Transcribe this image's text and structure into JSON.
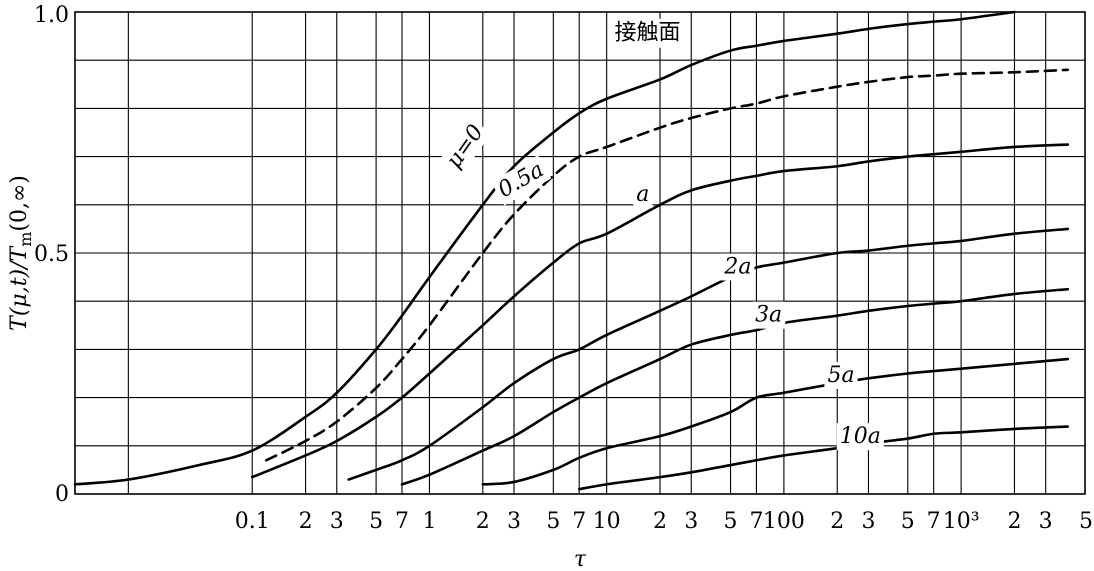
{
  "chart_data": {
    "type": "line",
    "xscale": "log",
    "xlim": [
      0.01,
      5000
    ],
    "ylim": [
      0,
      1.0
    ],
    "xlabel": "τ",
    "ylabel": "T(μ,t)/T_m(0,∞)",
    "y_ticks": [
      {
        "value": 0,
        "label": "0"
      },
      {
        "value": 0.5,
        "label": "0.5"
      },
      {
        "value": 1.0,
        "label": "1.0"
      }
    ],
    "x_ticks": [
      {
        "value": 0.1,
        "label": "0.1"
      },
      {
        "value": 0.2,
        "label": "2"
      },
      {
        "value": 0.3,
        "label": "3"
      },
      {
        "value": 0.5,
        "label": "5"
      },
      {
        "value": 0.7,
        "label": "7"
      },
      {
        "value": 1,
        "label": "1"
      },
      {
        "value": 2,
        "label": "2"
      },
      {
        "value": 3,
        "label": "3"
      },
      {
        "value": 5,
        "label": "5"
      },
      {
        "value": 7,
        "label": "7"
      },
      {
        "value": 10,
        "label": "10"
      },
      {
        "value": 20,
        "label": "2"
      },
      {
        "value": 30,
        "label": "3"
      },
      {
        "value": 50,
        "label": "5"
      },
      {
        "value": 70,
        "label": "7"
      },
      {
        "value": 100,
        "label": "100"
      },
      {
        "value": 200,
        "label": "2"
      },
      {
        "value": 300,
        "label": "3"
      },
      {
        "value": 500,
        "label": "5"
      },
      {
        "value": 700,
        "label": "7"
      },
      {
        "value": 1000,
        "label": "10³"
      },
      {
        "value": 2000,
        "label": "2"
      },
      {
        "value": 3000,
        "label": "3"
      },
      {
        "value": 5000,
        "label": "5"
      }
    ],
    "x_grid": [
      0.02,
      0.1,
      0.2,
      0.3,
      0.5,
      0.7,
      1,
      2,
      3,
      5,
      7,
      10,
      20,
      30,
      50,
      70,
      100,
      200,
      300,
      500,
      700,
      1000,
      2000,
      3000
    ],
    "y_grid": [
      0.1,
      0.2,
      0.3,
      0.4,
      0.5,
      0.6,
      0.7,
      0.8,
      0.9
    ],
    "series": [
      {
        "name": "μ=0",
        "dashed": false,
        "label_text": "μ=0",
        "label_at": [
          1.6,
          0.72
        ],
        "label_rotate": -55,
        "x": [
          0.01,
          0.02,
          0.05,
          0.1,
          0.2,
          0.3,
          0.5,
          0.7,
          1,
          2,
          3,
          5,
          7,
          10,
          20,
          30,
          50,
          70,
          100,
          200,
          300,
          500,
          700,
          1000,
          2000
        ],
        "values": [
          0.02,
          0.03,
          0.06,
          0.09,
          0.16,
          0.21,
          0.3,
          0.37,
          0.45,
          0.6,
          0.68,
          0.75,
          0.79,
          0.82,
          0.86,
          0.89,
          0.92,
          0.93,
          0.94,
          0.955,
          0.965,
          0.975,
          0.98,
          0.985,
          1.0
        ]
      },
      {
        "name": "0.5a",
        "dashed": true,
        "label_text": "0.5a",
        "label_at": [
          3.3,
          0.65
        ],
        "label_rotate": -30,
        "x": [
          0.12,
          0.2,
          0.3,
          0.5,
          0.7,
          1,
          2,
          3,
          5,
          7,
          10,
          20,
          30,
          50,
          70,
          100,
          200,
          300,
          500,
          700,
          1000,
          2000,
          4000
        ],
        "values": [
          0.07,
          0.11,
          0.15,
          0.22,
          0.28,
          0.35,
          0.5,
          0.58,
          0.66,
          0.7,
          0.72,
          0.76,
          0.78,
          0.8,
          0.81,
          0.825,
          0.845,
          0.855,
          0.865,
          0.868,
          0.872,
          0.875,
          0.88
        ]
      },
      {
        "name": "a",
        "dashed": false,
        "label_text": "a",
        "label_at": [
          16,
          0.62
        ],
        "label_rotate": 0,
        "x": [
          0.1,
          0.2,
          0.3,
          0.5,
          0.7,
          1,
          2,
          3,
          5,
          7,
          10,
          20,
          30,
          50,
          70,
          100,
          200,
          300,
          500,
          700,
          1000,
          2000,
          4000
        ],
        "values": [
          0.035,
          0.08,
          0.11,
          0.16,
          0.2,
          0.25,
          0.35,
          0.41,
          0.48,
          0.52,
          0.54,
          0.6,
          0.63,
          0.65,
          0.66,
          0.67,
          0.68,
          0.69,
          0.7,
          0.705,
          0.71,
          0.72,
          0.725
        ]
      },
      {
        "name": "2a",
        "dashed": false,
        "label_text": "2a",
        "label_at": [
          55,
          0.47
        ],
        "label_rotate": 0,
        "x": [
          0.35,
          0.5,
          0.7,
          1,
          2,
          3,
          5,
          7,
          10,
          20,
          30,
          50,
          70,
          100,
          200,
          300,
          500,
          700,
          1000,
          2000,
          4000
        ],
        "values": [
          0.03,
          0.05,
          0.07,
          0.1,
          0.18,
          0.23,
          0.28,
          0.3,
          0.33,
          0.38,
          0.41,
          0.45,
          0.47,
          0.48,
          0.5,
          0.505,
          0.515,
          0.52,
          0.525,
          0.54,
          0.55
        ]
      },
      {
        "name": "3a",
        "dashed": false,
        "label_text": "3a",
        "label_at": [
          82,
          0.37
        ],
        "label_rotate": 0,
        "x": [
          0.7,
          1,
          2,
          3,
          5,
          7,
          10,
          20,
          30,
          50,
          70,
          100,
          200,
          300,
          500,
          700,
          1000,
          2000,
          4000
        ],
        "values": [
          0.02,
          0.04,
          0.09,
          0.12,
          0.17,
          0.2,
          0.23,
          0.28,
          0.31,
          0.33,
          0.34,
          0.355,
          0.37,
          0.38,
          0.39,
          0.395,
          0.4,
          0.415,
          0.425
        ]
      },
      {
        "name": "5a",
        "dashed": false,
        "label_text": "5a",
        "label_at": [
          210,
          0.245
        ],
        "label_rotate": 0,
        "x": [
          2,
          3,
          5,
          7,
          10,
          20,
          30,
          50,
          70,
          100,
          200,
          300,
          500,
          700,
          1000,
          2000,
          4000
        ],
        "values": [
          0.02,
          0.025,
          0.05,
          0.075,
          0.095,
          0.12,
          0.14,
          0.17,
          0.2,
          0.21,
          0.23,
          0.24,
          0.25,
          0.255,
          0.26,
          0.27,
          0.28
        ]
      },
      {
        "name": "10a",
        "dashed": false,
        "label_text": "10a",
        "label_at": [
          270,
          0.118
        ],
        "label_rotate": 0,
        "x": [
          7,
          10,
          20,
          30,
          50,
          70,
          100,
          200,
          300,
          500,
          700,
          1000,
          2000,
          4000
        ],
        "values": [
          0.01,
          0.02,
          0.035,
          0.045,
          0.06,
          0.07,
          0.08,
          0.095,
          0.105,
          0.115,
          0.125,
          0.128,
          0.135,
          0.14
        ]
      }
    ],
    "annotations": [
      {
        "text": "接触面",
        "at": [
          17,
          0.955
        ]
      }
    ]
  }
}
